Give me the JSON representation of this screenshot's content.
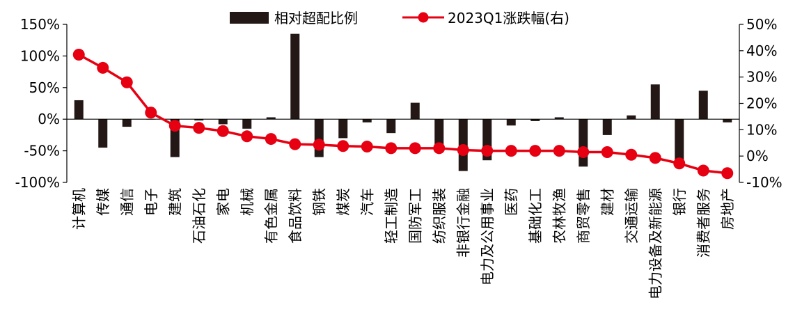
{
  "chart_data": {
    "type": "bar+line",
    "categories": [
      "计算机",
      "传媒",
      "通信",
      "电子",
      "建筑",
      "石油石化",
      "家电",
      "机械",
      "有色金属",
      "食品饮料",
      "钢铁",
      "煤炭",
      "汽车",
      "轻工制造",
      "国防军工",
      "纺织服装",
      "非银行金融",
      "电力及公用事业",
      "医药",
      "基础化工",
      "农林牧渔",
      "商贸零售",
      "建材",
      "交通运输",
      "电力设备及新能源",
      "银行",
      "消费者服务",
      "房地产"
    ],
    "series": [
      {
        "name": "相对超配比例",
        "type": "bar",
        "axis": "left",
        "color": "#231815",
        "values": [
          30,
          -45,
          -12,
          0,
          -60,
          -2,
          -8,
          -15,
          3,
          135,
          -60,
          -30,
          -5,
          -22,
          26,
          -40,
          -82,
          -65,
          -10,
          -3,
          3,
          -75,
          -25,
          6,
          55,
          -68,
          45,
          -5
        ]
      },
      {
        "name": "2023Q1涨跌幅(右)",
        "type": "line",
        "axis": "right",
        "color": "#e60012",
        "values": [
          38.5,
          33.5,
          28.0,
          16.5,
          11.5,
          10.7,
          9.5,
          7.5,
          6.5,
          4.5,
          4.3,
          3.8,
          3.6,
          3.0,
          3.0,
          3.0,
          2.3,
          2.0,
          2.0,
          2.0,
          2.0,
          1.5,
          1.5,
          0.5,
          -0.7,
          -2.8,
          -5.5,
          -6.5
        ]
      }
    ],
    "y_left": {
      "min": -100,
      "max": 150,
      "ticks": [
        "150%",
        "100%",
        "50%",
        "0%",
        "-50%",
        "-100%"
      ]
    },
    "y_right": {
      "min": -10,
      "max": 50,
      "ticks": [
        "50%",
        "40%",
        "30%",
        "20%",
        "10%",
        "0%",
        "-10%"
      ]
    },
    "legend_position": "top-center",
    "grid": false
  }
}
